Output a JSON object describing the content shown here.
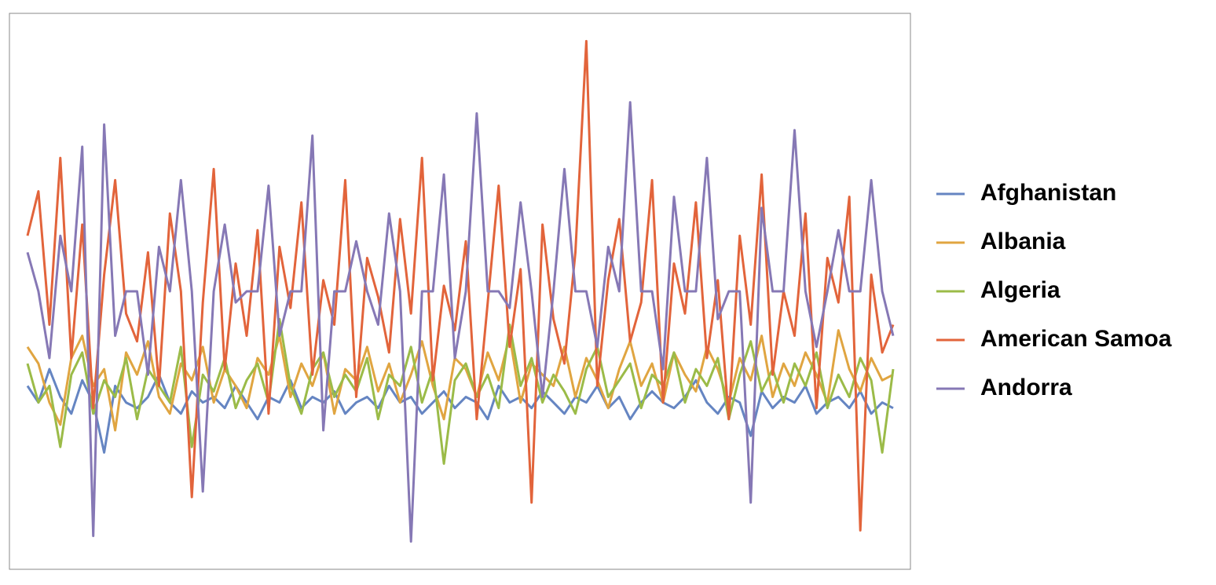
{
  "chart_data": {
    "type": "line",
    "categories": [
      null,
      null,
      null,
      null,
      null,
      null,
      null,
      null,
      null,
      null,
      null,
      null,
      null,
      null,
      null,
      null,
      null,
      null,
      null,
      null,
      null,
      null,
      null,
      null,
      null,
      null,
      null,
      null,
      null,
      null,
      null,
      null,
      null,
      null,
      null,
      null,
      null,
      null,
      null,
      null,
      null,
      null,
      null,
      null,
      null,
      null,
      null,
      null,
      null,
      null,
      null,
      null,
      null,
      null,
      null,
      null,
      null,
      null,
      null,
      null,
      null,
      null,
      null,
      null,
      null,
      null,
      null,
      null,
      null,
      null,
      null,
      null,
      null,
      null,
      null,
      null,
      null,
      null,
      null,
      null
    ],
    "ylim": [
      0,
      100
    ],
    "legend": "right",
    "series": [
      {
        "name": "Afghanistan",
        "color": "#6585c2",
        "values": [
          33,
          30,
          36,
          31,
          28,
          34,
          30,
          21,
          33,
          30,
          29,
          31,
          35,
          30,
          28,
          32,
          30,
          31,
          29,
          33,
          30,
          27,
          31,
          30,
          34,
          29,
          31,
          30,
          32,
          28,
          30,
          31,
          29,
          33,
          30,
          31,
          28,
          30,
          32,
          29,
          31,
          30,
          27,
          33,
          30,
          31,
          29,
          32,
          30,
          28,
          31,
          30,
          33,
          29,
          31,
          27,
          30,
          32,
          30,
          29,
          31,
          34,
          30,
          28,
          31,
          30,
          24,
          32,
          29,
          31,
          30,
          33,
          28,
          30,
          31,
          29,
          32,
          28,
          30,
          29
        ]
      },
      {
        "name": "Albania",
        "color": "#e0a541",
        "values": [
          40,
          37,
          30,
          26,
          38,
          42,
          33,
          36,
          25,
          39,
          35,
          41,
          31,
          28,
          37,
          34,
          40,
          30,
          36,
          33,
          29,
          38,
          35,
          42,
          31,
          37,
          33,
          39,
          28,
          36,
          34,
          40,
          32,
          37,
          30,
          35,
          41,
          33,
          27,
          38,
          36,
          31,
          39,
          34,
          42,
          30,
          37,
          35,
          33,
          40,
          31,
          38,
          34,
          29,
          36,
          41,
          33,
          37,
          30,
          39,
          35,
          32,
          40,
          36,
          30,
          38,
          34,
          42,
          31,
          37,
          33,
          39,
          35,
          30,
          43,
          36,
          32,
          38,
          34,
          35
        ]
      },
      {
        "name": "Algeria",
        "color": "#9bbb48",
        "values": [
          37,
          30,
          33,
          22,
          35,
          39,
          28,
          34,
          31,
          38,
          27,
          36,
          33,
          30,
          40,
          22,
          35,
          32,
          38,
          29,
          34,
          37,
          30,
          45,
          33,
          28,
          36,
          39,
          31,
          35,
          32,
          38,
          27,
          35,
          33,
          40,
          30,
          36,
          19,
          34,
          37,
          31,
          35,
          29,
          44,
          33,
          38,
          30,
          35,
          32,
          28,
          36,
          40,
          31,
          34,
          37,
          29,
          35,
          33,
          39,
          30,
          36,
          33,
          38,
          27,
          35,
          41,
          32,
          36,
          30,
          37,
          33,
          39,
          29,
          35,
          31,
          38,
          34,
          21,
          36
        ]
      },
      {
        "name": "American Samoa",
        "color": "#e2643b",
        "values": [
          60,
          68,
          44,
          74,
          38,
          62,
          29,
          53,
          70,
          46,
          41,
          57,
          33,
          64,
          50,
          13,
          48,
          72,
          36,
          55,
          42,
          61,
          28,
          58,
          47,
          66,
          35,
          52,
          44,
          70,
          31,
          56,
          49,
          39,
          63,
          46,
          74,
          34,
          51,
          43,
          59,
          27,
          48,
          69,
          40,
          54,
          12,
          62,
          45,
          37,
          57,
          95,
          33,
          52,
          63,
          41,
          48,
          70,
          30,
          55,
          46,
          66,
          38,
          52,
          27,
          60,
          44,
          71,
          35,
          50,
          42,
          64,
          29,
          56,
          48,
          67,
          7,
          53,
          39,
          44
        ]
      },
      {
        "name": "Andorra",
        "color": "#8678b5",
        "values": [
          57,
          50,
          38,
          60,
          50,
          76,
          6,
          80,
          42,
          50,
          50,
          35,
          58,
          50,
          70,
          50,
          14,
          50,
          62,
          48,
          50,
          50,
          69,
          42,
          50,
          50,
          78,
          25,
          50,
          50,
          59,
          50,
          44,
          64,
          50,
          5,
          50,
          50,
          71,
          38,
          50,
          82,
          50,
          50,
          47,
          66,
          50,
          31,
          50,
          72,
          50,
          50,
          40,
          58,
          50,
          84,
          50,
          50,
          36,
          67,
          50,
          50,
          74,
          45,
          50,
          50,
          12,
          65,
          50,
          50,
          79,
          50,
          40,
          50,
          61,
          50,
          50,
          70,
          50,
          42
        ]
      }
    ]
  }
}
